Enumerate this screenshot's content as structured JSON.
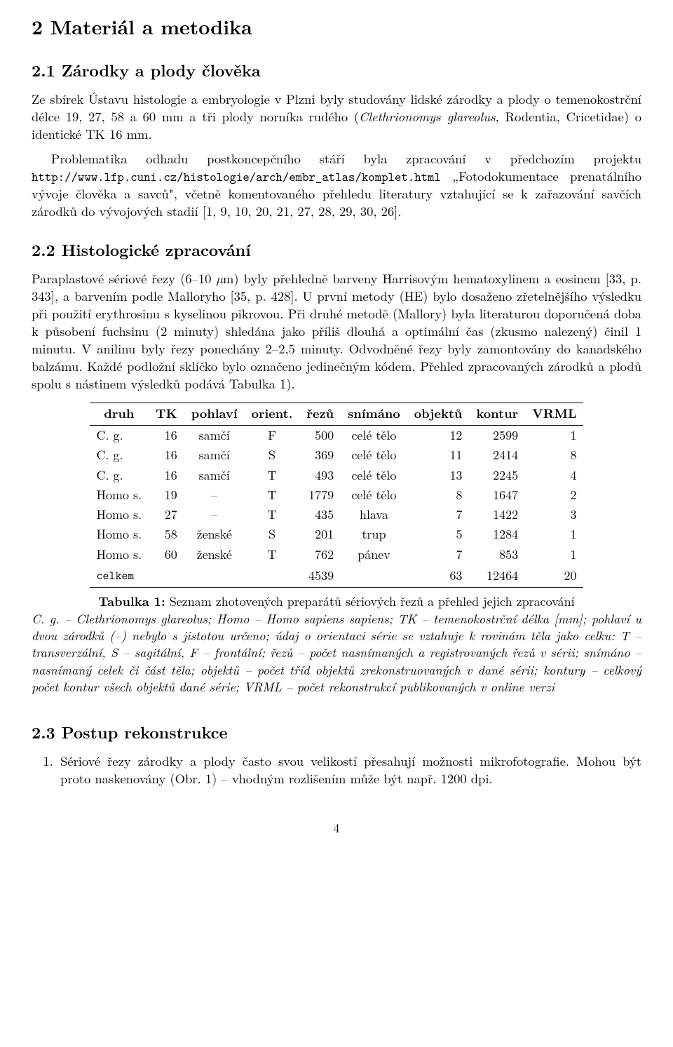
{
  "h1": "2  Materiál a metodika",
  "s21": {
    "title": "2.1  Zárodky a plody člověka",
    "p1a": "Ze sbírek Ústavu histologie a embryologie v Plzni byly studovány lidské zárodky a plody o temenokostrční délce 19, 27, 58 a 60 mm a tři plody norníka rudého (",
    "p1b": "Clethrionomys glareolus",
    "p1c": ", Rodentia, Cricetidae) o identické TK 16 mm.",
    "p2a": "Problematika odhadu postkoncepčního stáří byla zpracování v předchozím projektu ",
    "p2url": "http://www.lfp.cuni.cz/histologie/arch/embr_atlas/komplet.html",
    "p2b": " „Fotodokumentace prenatálního vývoje člověka a savců\", včetně komentovaného přehledu literatury vztahující se k zařazování savčích zárodků do vývojových stadií [1, 9, 10, 20, 21, 27, 28, 29, 30, 26]."
  },
  "s22": {
    "title": "2.2  Histologické zpracování",
    "p1a": "Paraplastové sériové řezy (6–10 ",
    "p1b": "µ",
    "p1c": "m) byly přehledně barveny Harrisovým hematoxylinem a eosinem [33, p. 343], a barvením podle Malloryho [35, p. 428]. U první metody (HE) bylo dosaženo zřetelnějšího výsledku při použití erythrosinu s kyselinou pikrovou. Při druhé metodě (Mallory) byla literaturou doporučená doba k působení fuchsinu (2 minuty) shledána jako příliš dlouhá a optimální čas (zkusmo nalezený) činil 1 minutu. V anilinu byly řezy ponechány 2–2,5 minuty. Odvodněné řezy byly zamontovány do kanadského balzámu. Každé podložní sklíčko bylo označeno jedinečným kódem. Přehled zpracovaných zárodků a plodů spolu s nástinem výsledků podává Tabulka 1)."
  },
  "table": {
    "columns": [
      "druh",
      "TK",
      "pohlaví",
      "orient.",
      "řezů",
      "snímáno",
      "objektů",
      "kontur",
      "VRML"
    ],
    "rows": [
      [
        "C. g.",
        "16",
        "samčí",
        "F",
        "500",
        "celé tělo",
        "12",
        "2599",
        "1"
      ],
      [
        "C. g.",
        "16",
        "samčí",
        "S",
        "369",
        "celé tělo",
        "11",
        "2414",
        "8"
      ],
      [
        "C. g.",
        "16",
        "samčí",
        "T",
        "493",
        "celé tělo",
        "13",
        "2245",
        "4"
      ],
      [
        "Homo s.",
        "19",
        "–",
        "T",
        "1779",
        "celé tělo",
        "8",
        "1647",
        "2"
      ],
      [
        "Homo s.",
        "27",
        "–",
        "T",
        "435",
        "hlava",
        "7",
        "1422",
        "3"
      ],
      [
        "Homo s.",
        "58",
        "ženské",
        "S",
        "201",
        "trup",
        "5",
        "1284",
        "1"
      ],
      [
        "Homo s.",
        "60",
        "ženské",
        "T",
        "762",
        "pánev",
        "7",
        "853",
        "1"
      ]
    ],
    "total": [
      "celkem",
      "",
      "",
      "",
      "4539",
      "",
      "63",
      "12464",
      "20"
    ],
    "align": [
      "left",
      "right",
      "center",
      "center",
      "right",
      "center",
      "right",
      "right",
      "right"
    ]
  },
  "caption": {
    "title": "Tabulka 1:",
    "lead": " Seznam zhotovených preparátů sériových řezů a přehled jejich zpracování",
    "body": "C. g. – Clethrionomys glareolus; Homo – Homo sapiens sapiens; TK – temenokostrční délka [mm]; pohlaví u dvou zárodků (–) nebylo s jistotou určeno; údaj o orientaci série se vztahuje k rovinám těla jako celku: T – transverzální, S – sagitální, F – frontální; řezů – počet nasnímaných a registrovaných řezů v sérii; snímáno – nasnímaný celek či část těla; objektů – počet tříd objektů zrekonstruovaných v dané sérii; kontury – celkový počet kontur všech objektů dané série; VRML – počet rekonstrukcí publikovaných v online verzi"
  },
  "s23": {
    "title": "2.3  Postup rekonstrukce",
    "li1": "Sériové řezy zárodky a plody často svou velikostí přesahují možnosti mikrofotografie. Mohou být proto naskenovány (Obr. 1) – vhodným rozlišením může být např. 1200 dpi."
  },
  "pagenum": "4"
}
